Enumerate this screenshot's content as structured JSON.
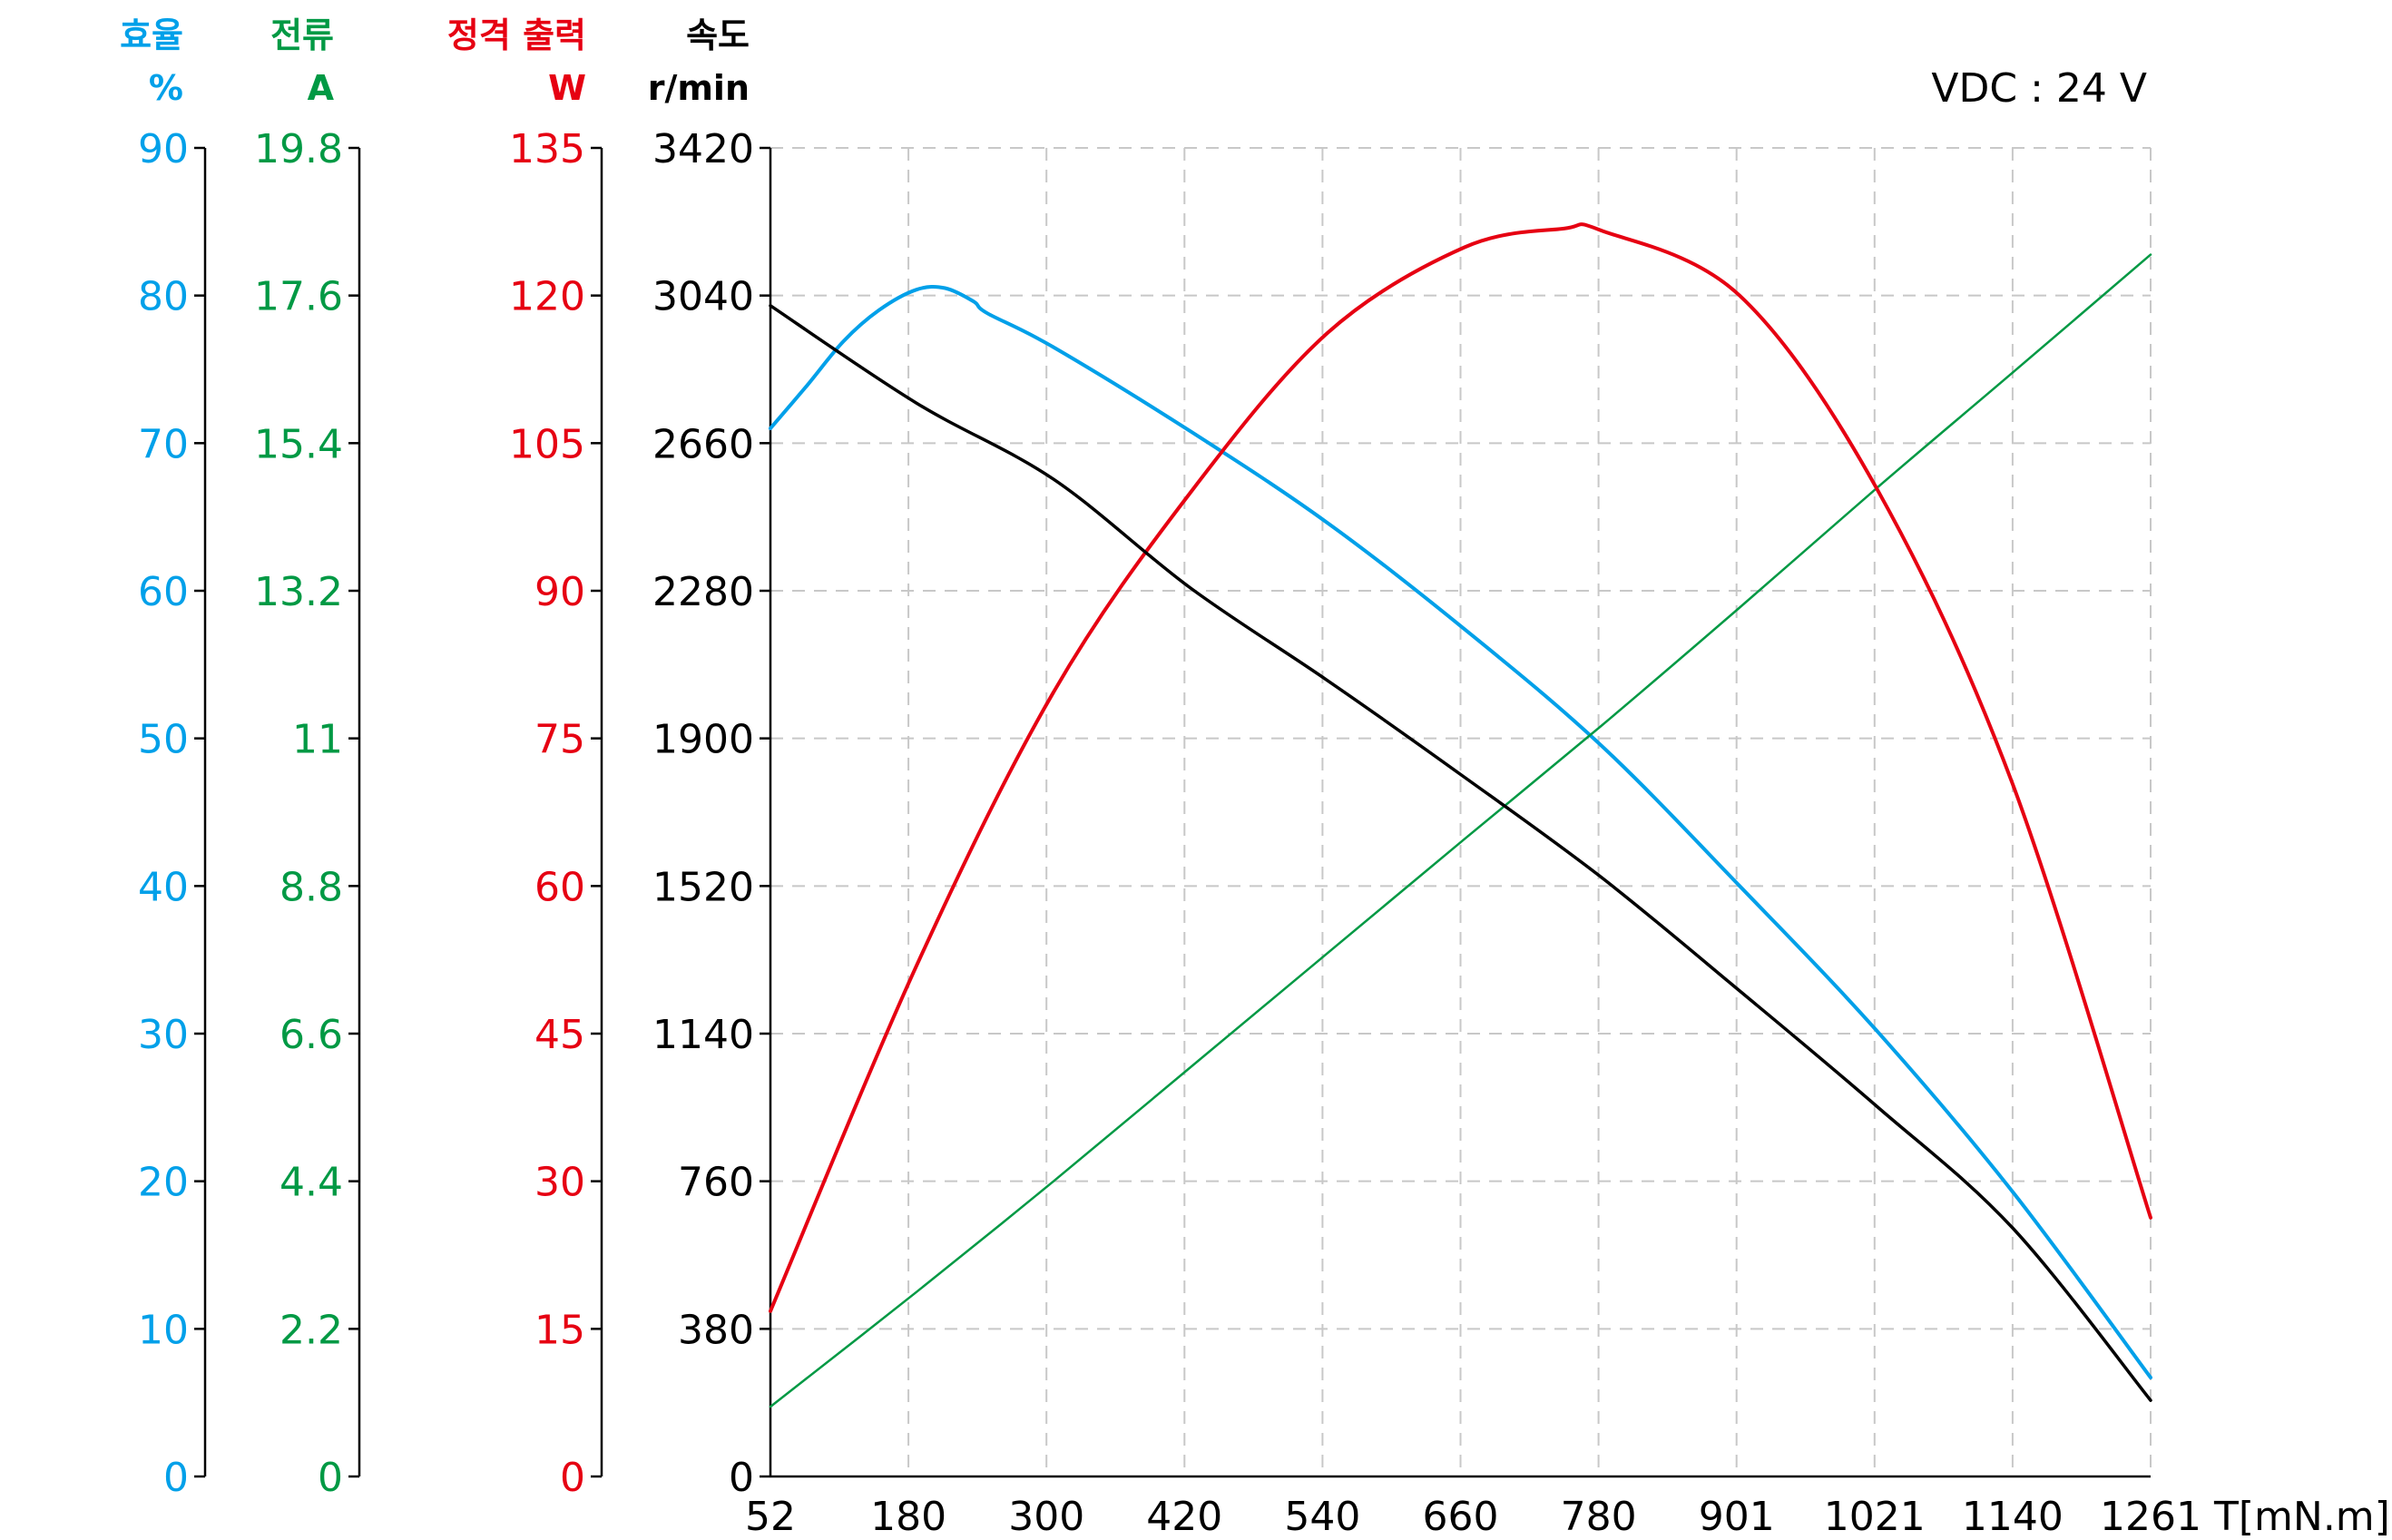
{
  "chart_data": {
    "type": "line",
    "title": "",
    "annotation": "VDC : 24 V",
    "xlabel": "T[mN.m]",
    "x_ticks": [
      "52",
      "180",
      "300",
      "420",
      "540",
      "660",
      "780",
      "901",
      "1021",
      "1140",
      "1261"
    ],
    "xlim": [
      52,
      1261
    ],
    "grid": true,
    "legend": "none (axis headers colored per series)",
    "axes": [
      {
        "id": "efficiency",
        "title": "효율",
        "unit": "%",
        "color": "#00a0e9",
        "ylim": [
          0,
          90
        ],
        "ticks": [
          "90",
          "80",
          "70",
          "60",
          "50",
          "40",
          "30",
          "20",
          "10",
          "0"
        ]
      },
      {
        "id": "current",
        "title": "전류",
        "unit": "A",
        "color": "#009944",
        "ylim": [
          0,
          19.8
        ],
        "ticks": [
          "19.8",
          "17.6",
          "15.4",
          "13.2",
          "11",
          "8.8",
          "6.6",
          "4.4",
          "2.2",
          "0"
        ]
      },
      {
        "id": "power",
        "title": "정격 출력",
        "unit": "W",
        "color": "#e60012",
        "ylim": [
          0,
          135
        ],
        "ticks": [
          "135",
          "120",
          "105",
          "90",
          "75",
          "60",
          "45",
          "30",
          "15",
          "0"
        ]
      },
      {
        "id": "speed",
        "title": "속도",
        "unit": "r/min",
        "color": "#000000",
        "ylim": [
          0,
          3420
        ],
        "ticks": [
          "3420",
          "3040",
          "2660",
          "2280",
          "1900",
          "1520",
          "1140",
          "760",
          "380",
          "0"
        ]
      }
    ],
    "series": [
      {
        "name": "효율 (%)",
        "axis": "efficiency",
        "color": "#00a0e9",
        "stroke_width": 4,
        "x": [
          52,
          84,
          116,
          147,
          180,
          205,
          230,
          242,
          300,
          420,
          540,
          660,
          780,
          901,
          1021,
          1140,
          1261
        ],
        "values": [
          71.0,
          73.9,
          76.9,
          79.0,
          80.4,
          80.5,
          79.6,
          78.8,
          76.5,
          70.8,
          64.6,
          57.4,
          49.5,
          40.0,
          30.2,
          19.3,
          6.7
        ]
      },
      {
        "name": "전류 (A)",
        "axis": "current",
        "color": "#009944",
        "stroke_width": 2.5,
        "x": [
          52,
          180,
          300,
          420,
          540,
          660,
          780,
          901,
          1021,
          1140,
          1261
        ],
        "values": [
          1.04,
          2.75,
          4.4,
          6.1,
          7.8,
          9.5,
          11.19,
          12.95,
          14.73,
          16.45,
          18.21
        ]
      },
      {
        "name": "정격 출력 (W)",
        "axis": "power",
        "color": "#e60012",
        "stroke_width": 4,
        "x": [
          52,
          180,
          300,
          420,
          540,
          660,
          747,
          780,
          901,
          1021,
          1140,
          1261
        ],
        "values": [
          16.8,
          51.9,
          79.7,
          100.0,
          116.2,
          124.9,
          126.8,
          126.6,
          120.0,
          100.4,
          70.4,
          26.3
        ]
      },
      {
        "name": "속도 (r/min)",
        "axis": "speed",
        "color": "#000000",
        "stroke_width": 3.5,
        "x": [
          52,
          180,
          300,
          420,
          540,
          660,
          780,
          901,
          1021,
          1140,
          1261
        ],
        "values": [
          3014,
          2763,
          2567,
          2287,
          2049,
          1800,
          1542,
          1250,
          953,
          640,
          196
        ]
      }
    ]
  }
}
